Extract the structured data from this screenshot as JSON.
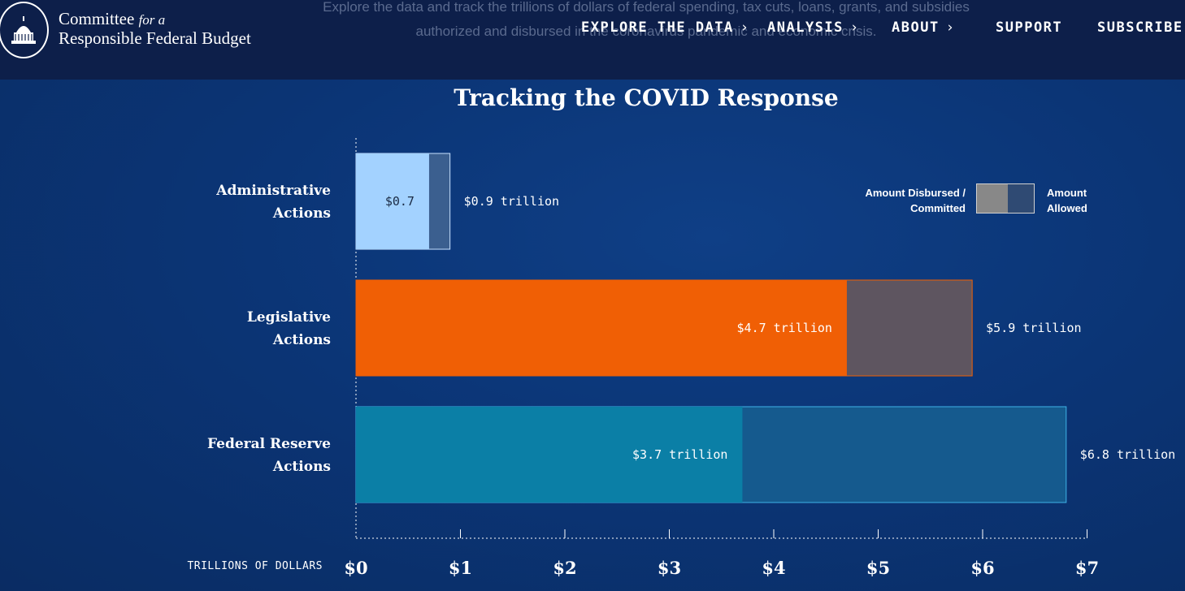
{
  "header": {
    "logo_line1": "Committee",
    "logo_for_a": "for a",
    "logo_line2": "Responsible Federal Budget",
    "intro_text": "Explore the data and track the trillions of dollars of federal spending, tax cuts, loans, grants, and subsidies authorized and disbursed in the coronavirus pandemic and economic crisis.",
    "nav": [
      {
        "label": "EXPLORE THE DATA",
        "has_chevron": true
      },
      {
        "label": "ANALYSIS",
        "has_chevron": true
      },
      {
        "label": "ABOUT",
        "has_chevron": true
      },
      {
        "label": "SUPPORT",
        "has_chevron": false
      },
      {
        "label": "SUBSCRIBE",
        "has_chevron": false
      }
    ]
  },
  "colors": {
    "admin_disbursed": "#a3d2ff",
    "admin_allowed": "#3b5f8f",
    "legis_disbursed": "#f05f05",
    "legis_allowed": "#5e5560",
    "fed_disbursed": "#0b7fa6",
    "fed_allowed": "#155a8e"
  },
  "chart_data": {
    "type": "bar",
    "orientation": "horizontal",
    "title": "Tracking the COVID Response",
    "xlabel": "TRILLIONS OF DOLLARS",
    "xlim": [
      0,
      7
    ],
    "x_ticks": [
      "$0",
      "$1",
      "$2",
      "$3",
      "$4",
      "$5",
      "$6",
      "$7"
    ],
    "categories": [
      "Administrative Actions",
      "Legislative Actions",
      "Federal Reserve Actions"
    ],
    "category_lines": [
      [
        "Administrative",
        "Actions"
      ],
      [
        "Legislative",
        "Actions"
      ],
      [
        "Federal Reserve",
        "Actions"
      ]
    ],
    "series": [
      {
        "name": "Amount Disbursed / Committed",
        "values": [
          0.7,
          4.7,
          3.7
        ],
        "labels": [
          "$0.7",
          "$4.7 trillion",
          "$3.7 trillion"
        ]
      },
      {
        "name": "Amount Allowed",
        "values": [
          0.9,
          5.9,
          6.8
        ],
        "labels": [
          "$0.9 trillion",
          "$5.9 trillion",
          "$6.8 trillion"
        ]
      }
    ],
    "legend": {
      "left_lines": [
        "Amount Disbursed /",
        "Committed"
      ],
      "right_lines": [
        "Amount",
        "Allowed"
      ],
      "placement": "top-right"
    }
  }
}
